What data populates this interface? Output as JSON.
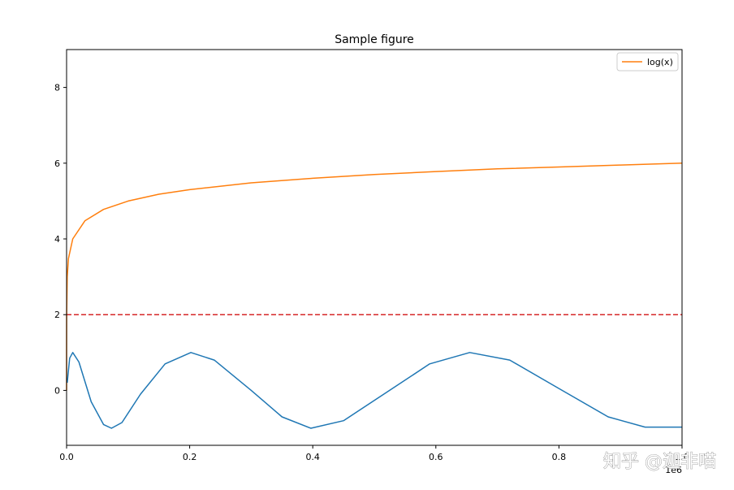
{
  "chart_data": {
    "type": "line",
    "title": "Sample figure",
    "xlabel": "",
    "ylabel": "",
    "x_offset_label": "1e6",
    "xlim": [
      0,
      1000000
    ],
    "ylim": [
      -1.45,
      9.0
    ],
    "x_ticks": [
      {
        "value": 0,
        "label": "0.0"
      },
      {
        "value": 200000,
        "label": "0.2"
      },
      {
        "value": 400000,
        "label": "0.4"
      },
      {
        "value": 600000,
        "label": "0.6"
      },
      {
        "value": 800000,
        "label": "0.8"
      },
      {
        "value": 1000000,
        "label": "1.0"
      }
    ],
    "y_ticks": [
      {
        "value": 0,
        "label": "0"
      },
      {
        "value": 2,
        "label": "2"
      },
      {
        "value": 4,
        "label": "4"
      },
      {
        "value": 6,
        "label": "6"
      },
      {
        "value": 8,
        "label": "8"
      }
    ],
    "grid": false,
    "legend": {
      "position": "top-right",
      "entries": [
        "log(x)"
      ]
    },
    "series": [
      {
        "name": "log(x)",
        "color": "#ff7f0e",
        "style": "solid",
        "x": [
          1,
          10,
          100,
          1000,
          3000,
          10000,
          30000,
          60000,
          100000,
          150000,
          200000,
          300000,
          400000,
          500000,
          600000,
          700000,
          800000,
          900000,
          1000000
        ],
        "y": [
          0.0,
          1.0,
          2.0,
          3.0,
          3.48,
          4.0,
          4.48,
          4.78,
          5.0,
          5.18,
          5.3,
          5.48,
          5.6,
          5.7,
          5.78,
          5.85,
          5.9,
          5.95,
          6.0
        ]
      },
      {
        "color": "#1f77b4",
        "style": "solid",
        "x": [
          1000,
          5000,
          10000,
          20000,
          40000,
          60000,
          73000,
          90000,
          120000,
          160000,
          202000,
          240000,
          300000,
          350000,
          397000,
          450000,
          520000,
          590000,
          655000,
          720000,
          800000,
          880000,
          940000,
          1000000
        ],
        "y": [
          0.2,
          0.85,
          1.0,
          0.75,
          -0.3,
          -0.9,
          -1.0,
          -0.85,
          -0.1,
          0.7,
          1.0,
          0.8,
          0.0,
          -0.7,
          -1.0,
          -0.8,
          -0.05,
          0.7,
          1.0,
          0.8,
          0.05,
          -0.7,
          -0.97,
          -0.97
        ]
      },
      {
        "color": "#d62728",
        "style": "dashed",
        "x": [
          0,
          1000000
        ],
        "y": [
          2,
          2
        ]
      }
    ]
  },
  "watermark": "知乎 @迦非喵"
}
